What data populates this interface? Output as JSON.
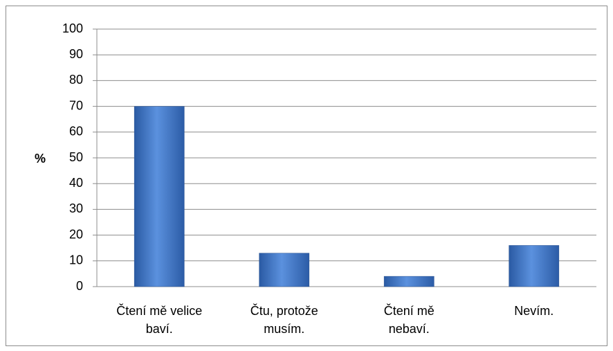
{
  "chart_data": {
    "type": "bar",
    "y_label": "%",
    "categories": [
      "Čtení mě velice\nbaví.",
      "Čtu, protože\nmusím.",
      "Čtení mě\nnebaví.",
      "Nevím."
    ],
    "values": [
      70,
      13,
      4,
      16
    ],
    "color": "#3d72c4",
    "ylim": [
      0,
      100
    ],
    "yticks": [
      0,
      10,
      20,
      30,
      40,
      50,
      60,
      70,
      80,
      90,
      100
    ],
    "grid": true
  }
}
